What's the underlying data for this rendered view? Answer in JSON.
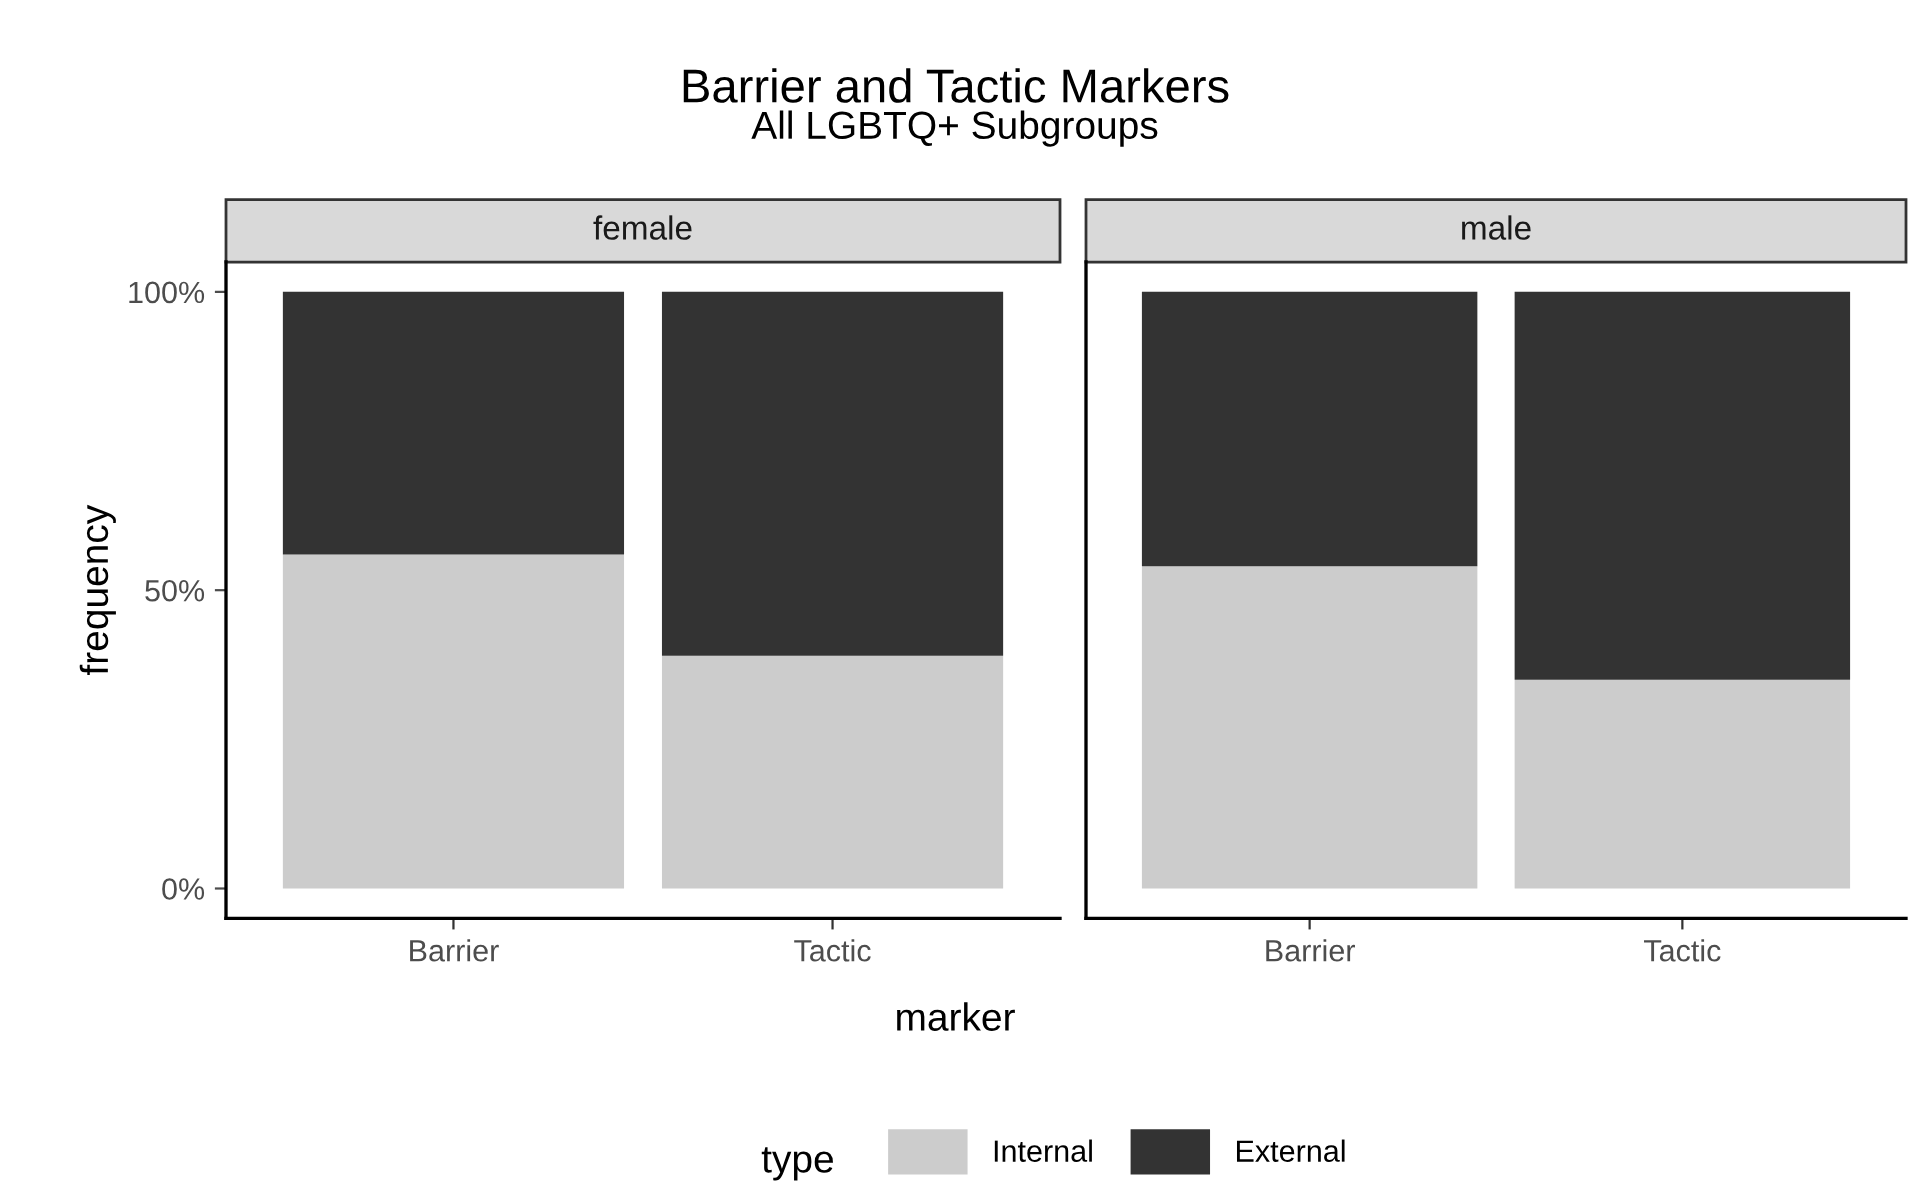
{
  "chart_data": [
    {
      "type": "bar",
      "title": "female",
      "annotations": [
        "Barrier and Tactic Markers",
        "All LGBTQ+ Subgroups"
      ],
      "xlabel": "marker",
      "ylabel": "frequency",
      "legend_title": "type",
      "legend": "bottom",
      "stacked": true,
      "grid": false,
      "categories": [
        "Barrier",
        "Tactic"
      ],
      "series": [
        {
          "name": "Internal",
          "color": "#cccccc",
          "values": [
            56,
            39
          ]
        },
        {
          "name": "External",
          "color": "#333333",
          "values": [
            44,
            61
          ]
        }
      ],
      "ylim": [
        -5,
        105
      ],
      "yticks": [
        {
          "value": 0,
          "label": "0%"
        },
        {
          "value": 50,
          "label": "50%"
        },
        {
          "value": 100,
          "label": "100%"
        }
      ]
    },
    {
      "type": "bar",
      "title": "male",
      "stacked": true,
      "grid": false,
      "tick_labels": "x",
      "categories": [
        "Barrier",
        "Tactic"
      ],
      "series": [
        {
          "color": "#cccccc",
          "values": [
            54,
            35
          ]
        },
        {
          "color": "#333333",
          "values": [
            46,
            65
          ]
        }
      ],
      "ylim": [
        -5,
        105
      ]
    }
  ]
}
